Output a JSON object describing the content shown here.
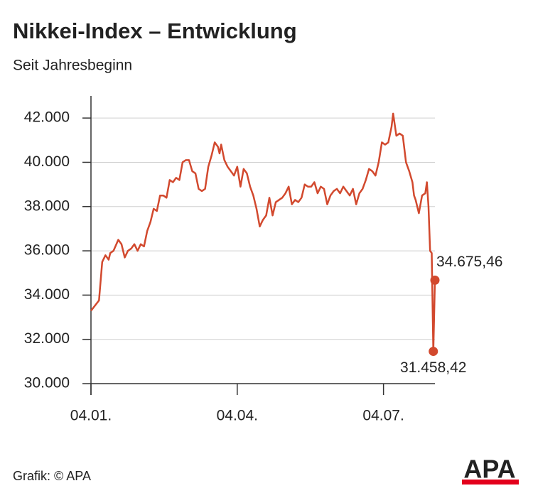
{
  "chart_data": {
    "type": "line",
    "title": "Nikkei-Index – Entwicklung",
    "subtitle": "Seit Jahresbeginn",
    "source": "Grafik: © APA",
    "logo": "APA",
    "color": "#d2492e",
    "grid": true,
    "xlim": [
      0,
      214
    ],
    "xticks": [
      {
        "value": 0,
        "label": "04.01."
      },
      {
        "value": 91,
        "label": "04.04."
      },
      {
        "value": 182,
        "label": "04.07."
      }
    ],
    "ylim": [
      30000,
      43000
    ],
    "yticks": [
      {
        "value": 30000,
        "label": "30.000"
      },
      {
        "value": 32000,
        "label": "32.000"
      },
      {
        "value": 34000,
        "label": "34.000"
      },
      {
        "value": 36000,
        "label": "36.000"
      },
      {
        "value": 38000,
        "label": "38.000"
      },
      {
        "value": 40000,
        "label": "40.000"
      },
      {
        "value": 42000,
        "label": "42.000"
      }
    ],
    "x": [
      0,
      5,
      7,
      9,
      11,
      12,
      14,
      17,
      19,
      21,
      23,
      25,
      27,
      29,
      31,
      33,
      35,
      37,
      39,
      41,
      43,
      45,
      47,
      49,
      51,
      53,
      55,
      57,
      59,
      61,
      63,
      65,
      67,
      69,
      71,
      73,
      75,
      77,
      79,
      80,
      81,
      83,
      85,
      87,
      89,
      91,
      93,
      95,
      97,
      99,
      101,
      103,
      105,
      107,
      109,
      111,
      113,
      115,
      117,
      119,
      121,
      123,
      125,
      127,
      129,
      131,
      133,
      135,
      137,
      139,
      141,
      143,
      145,
      147,
      149,
      151,
      153,
      155,
      157,
      159,
      161,
      163,
      165,
      167,
      169,
      171,
      173,
      175,
      177,
      179,
      181,
      183,
      185,
      187,
      188,
      190,
      192,
      194,
      196,
      198,
      200,
      201,
      202,
      204,
      206,
      208,
      209,
      210,
      211,
      212,
      213,
      214
    ],
    "values": [
      33290,
      33760,
      35500,
      35800,
      35600,
      35900,
      36000,
      36500,
      36300,
      35700,
      36000,
      36100,
      36300,
      36000,
      36300,
      36200,
      36900,
      37300,
      37900,
      37800,
      38500,
      38500,
      38400,
      39200,
      39100,
      39300,
      39200,
      40000,
      40100,
      40100,
      39600,
      39500,
      38800,
      38700,
      38800,
      39800,
      40300,
      40900,
      40700,
      40400,
      40800,
      40100,
      39800,
      39600,
      39400,
      39800,
      38900,
      39700,
      39500,
      38900,
      38500,
      37900,
      37100,
      37400,
      37600,
      38400,
      37600,
      38200,
      38300,
      38400,
      38600,
      38900,
      38100,
      38300,
      38200,
      38400,
      39000,
      38900,
      38900,
      39100,
      38600,
      38900,
      38800,
      38100,
      38500,
      38700,
      38800,
      38600,
      38900,
      38700,
      38500,
      38800,
      38100,
      38600,
      38800,
      39200,
      39700,
      39600,
      39400,
      40000,
      40900,
      40800,
      40900,
      41600,
      42200,
      41200,
      41300,
      41200,
      40000,
      39600,
      39100,
      38500,
      38300,
      37700,
      38500,
      38600,
      39100,
      38000,
      36000,
      35900,
      31458.42,
      34675.46
    ],
    "value_labels": [
      null,
      null,
      null,
      null,
      null,
      null,
      null,
      null,
      null,
      null,
      null,
      null,
      null,
      null,
      null,
      null,
      null,
      null,
      null,
      null,
      null,
      null,
      null,
      null,
      null,
      null,
      null,
      null,
      null,
      null,
      null,
      null,
      null,
      null,
      null,
      null,
      null,
      null,
      null,
      null,
      null,
      null,
      null,
      null,
      null,
      null,
      null,
      null,
      null,
      null,
      null,
      null,
      null,
      null,
      null,
      null,
      null,
      null,
      null,
      null,
      null,
      null,
      null,
      null,
      null,
      null,
      null,
      null,
      null,
      null,
      null,
      null,
      null,
      null,
      null,
      null,
      null,
      null,
      null,
      null,
      null,
      null,
      null,
      null,
      null,
      null,
      null,
      null,
      null,
      null,
      null,
      null,
      null,
      null,
      null,
      null,
      null,
      null,
      null,
      null,
      null,
      null,
      null,
      null,
      null,
      null,
      null,
      null,
      null,
      null,
      "31.458,42",
      "34.675,46"
    ]
  }
}
